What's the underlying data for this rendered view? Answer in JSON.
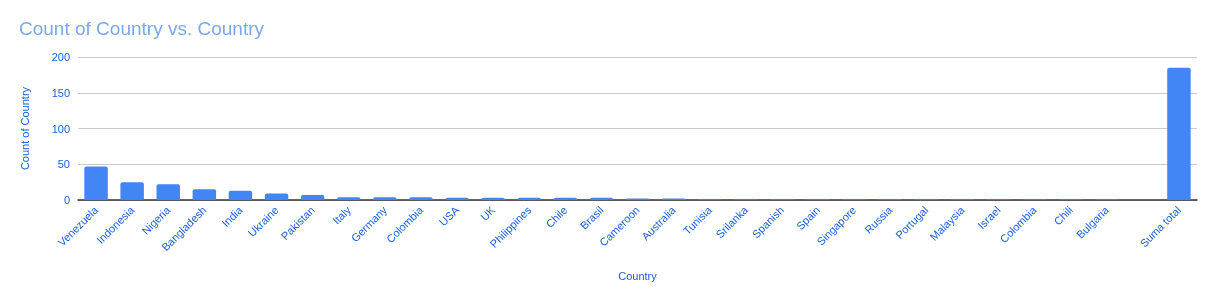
{
  "chart_data": {
    "type": "bar",
    "title": "Count of Country vs. Country",
    "xlabel": "Country",
    "ylabel": "Count of Country",
    "categories": [
      "Venezuela",
      "Indonesia",
      "Nigeria",
      "Bangladesh",
      "India",
      "Ukraine",
      "Pakistan",
      "Italy",
      "Germany",
      "Colombia",
      "USA",
      "UK",
      "Philippines",
      "Chile",
      "Brasil",
      "Cameroon",
      "Australia",
      "Tunisia",
      "Srilanka",
      "Spanish",
      "Spain",
      "Singapore",
      "Russia",
      "Portugal",
      "Malaysia",
      "Israel",
      "Colombia",
      "Chili",
      "Bulgaria",
      null,
      "Suma total"
    ],
    "values": [
      47,
      25,
      22,
      15,
      13,
      9,
      7,
      4,
      4,
      4,
      3,
      3,
      3,
      3,
      3,
      2,
      2,
      1,
      1,
      1,
      1,
      1,
      1,
      1,
      1,
      1,
      1,
      1,
      1,
      null,
      185
    ],
    "color": "#4285f4",
    "ylim": [
      0,
      200
    ],
    "yticks": [
      0,
      50,
      100,
      150,
      200
    ],
    "grid": "y"
  }
}
